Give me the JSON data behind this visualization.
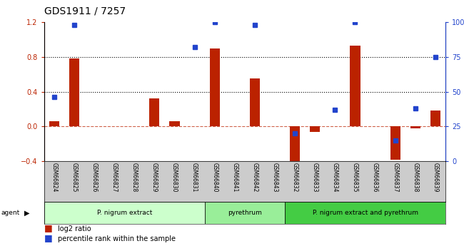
{
  "title": "GDS1911 / 7257",
  "samples": [
    "GSM66824",
    "GSM66825",
    "GSM66826",
    "GSM66827",
    "GSM66828",
    "GSM66829",
    "GSM66830",
    "GSM66831",
    "GSM66840",
    "GSM66841",
    "GSM66842",
    "GSM66843",
    "GSM66832",
    "GSM66833",
    "GSM66834",
    "GSM66835",
    "GSM66836",
    "GSM66837",
    "GSM66838",
    "GSM66839"
  ],
  "log2_ratio": [
    0.06,
    0.78,
    0.0,
    0.0,
    0.0,
    0.32,
    0.06,
    0.0,
    0.9,
    0.0,
    0.55,
    0.0,
    -0.5,
    -0.06,
    0.0,
    0.93,
    0.0,
    -0.38,
    -0.02,
    0.18
  ],
  "pct_rank": [
    46,
    98,
    0,
    0,
    0,
    0,
    0,
    82,
    100,
    0,
    98,
    0,
    20,
    0,
    37,
    100,
    0,
    15,
    38,
    75
  ],
  "groups": [
    {
      "label": "P. nigrum extract",
      "start": 0,
      "end": 8,
      "color": "#ccffcc"
    },
    {
      "label": "pyrethrum",
      "start": 8,
      "end": 12,
      "color": "#99ee99"
    },
    {
      "label": "P. nigrum extract and pyrethrum",
      "start": 12,
      "end": 20,
      "color": "#44cc44"
    }
  ],
  "bar_color_red": "#bb2200",
  "bar_color_blue": "#2244cc",
  "bg_label_color": "#cccccc",
  "ylim_left": [
    -0.4,
    1.2
  ],
  "ylim_right": [
    0,
    100
  ],
  "yticks_left": [
    -0.4,
    0.0,
    0.4,
    0.8,
    1.2
  ],
  "yticks_right": [
    0,
    25,
    50,
    75,
    100
  ],
  "legend_log2": "log2 ratio",
  "legend_pct": "percentile rank within the sample",
  "agent_label": "agent"
}
